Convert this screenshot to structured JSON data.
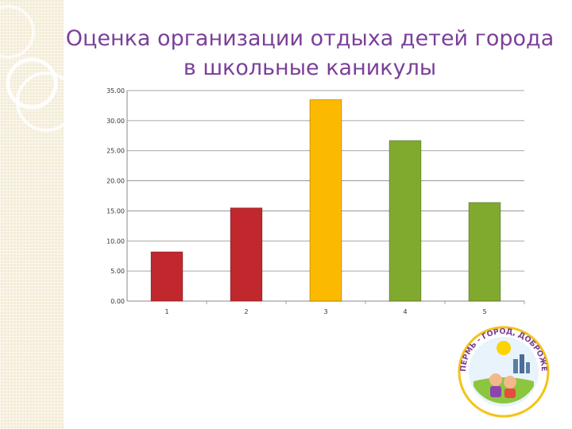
{
  "title_lines": [
    "Оценка организации отдыха детей города",
    "в школьные каникулы"
  ],
  "logo_text": "ПЕРМЬ - ГОРОД, ДОБРОЖЕЛАТЕЛЬНЫЙ К ДЕТЯМ",
  "chart_data": {
    "type": "bar",
    "categories": [
      "1",
      "2",
      "3",
      "4",
      "5"
    ],
    "values": [
      8.2,
      15.5,
      33.5,
      26.7,
      16.4
    ],
    "colors": [
      "#c0282d",
      "#c0282d",
      "#fbb900",
      "#7faa2e",
      "#7faa2e"
    ],
    "ylim": [
      0,
      35
    ],
    "yticks": [
      0,
      5,
      10,
      15,
      20,
      25,
      30,
      35
    ],
    "ytick_labels": [
      "0.00",
      "5.00",
      "10.00",
      "15.00",
      "20.00",
      "25.00",
      "30.00",
      "35.00"
    ],
    "grid": true,
    "legend": "none"
  }
}
